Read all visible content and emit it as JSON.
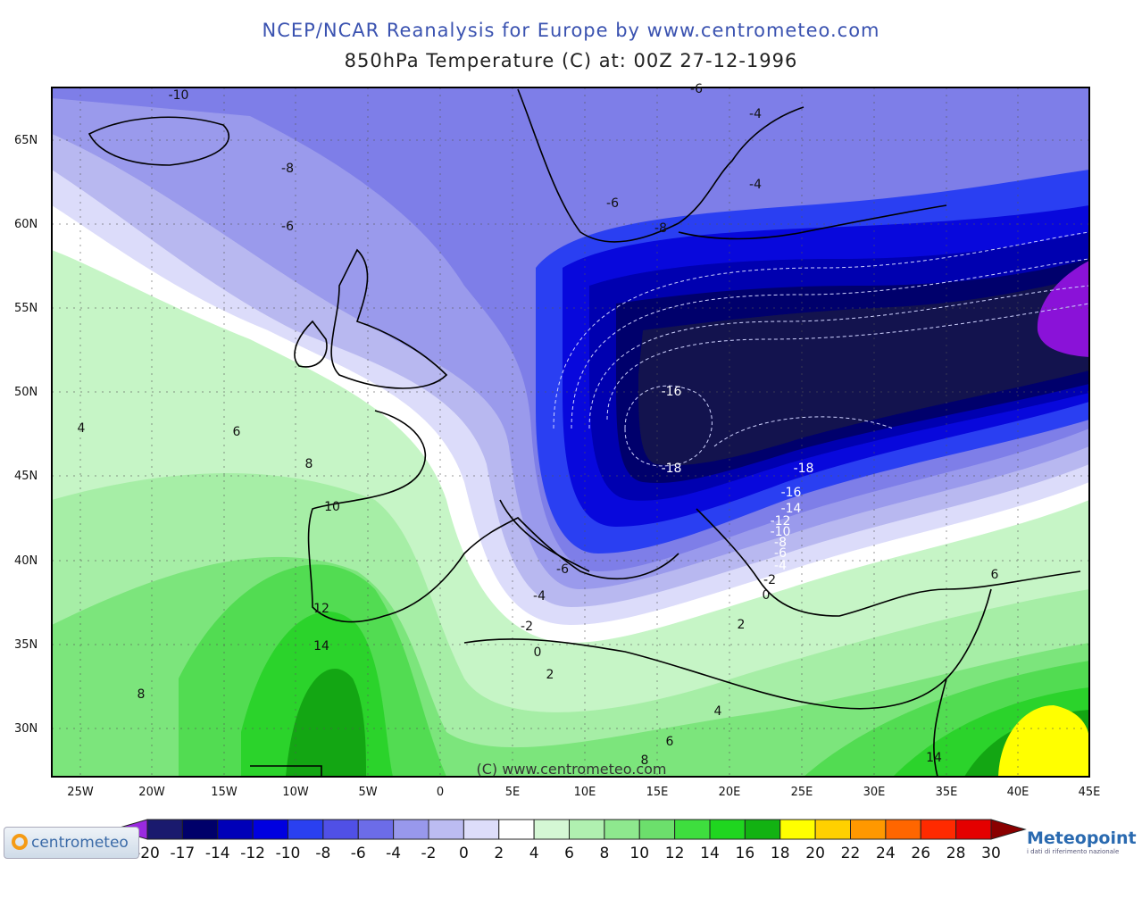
{
  "title": "NCEP/NCAR Reanalysis for Europe by www.centrometeo.com",
  "subtitle": "850hPa Temperature (C) at: 00Z 27-12-1996",
  "watermark": "(C) www.centrometeo.com",
  "lat_labels": [
    "65N",
    "60N",
    "55N",
    "50N",
    "45N",
    "40N",
    "35N",
    "30N"
  ],
  "lon_labels": [
    "25W",
    "20W",
    "15W",
    "10W",
    "5W",
    "0",
    "5E",
    "10E",
    "15E",
    "20E",
    "25E",
    "30E",
    "35E",
    "40E",
    "45E"
  ],
  "contour_labels": [
    "-10",
    "-6",
    "-4",
    "-8",
    "-4",
    "-6",
    "-8",
    "-6",
    "-16",
    "-18",
    "-18",
    "-16",
    "-14",
    "-12",
    "-10",
    "-8",
    "-6",
    "-4",
    "-2",
    "0",
    "4",
    "6",
    "8",
    "10",
    "-6",
    "-4",
    "-2",
    "0",
    "2",
    "2",
    "12",
    "14",
    "8",
    "4",
    "6",
    "8",
    "6",
    "14"
  ],
  "colorbar": {
    "labels": [
      "-20",
      "-17",
      "-14",
      "-12",
      "-10",
      "-8",
      "-6",
      "-4",
      "-2",
      "0",
      "2",
      "4",
      "6",
      "8",
      "10",
      "12",
      "14",
      "16",
      "18",
      "20",
      "22",
      "24",
      "26",
      "28",
      "30"
    ],
    "colors": [
      "#1a1a6e",
      "#00006a",
      "#0000b8",
      "#0000e0",
      "#2a40f0",
      "#5050e6",
      "#6c6ce8",
      "#9898ec",
      "#bcbcf2",
      "#ddddfa",
      "#ffffff",
      "#d4f7d4",
      "#b0f0b0",
      "#8ee88e",
      "#6cdf6c",
      "#3ede3e",
      "#1fd61f",
      "#12b212",
      "#ffff00",
      "#ffd000",
      "#ff9800",
      "#ff6600",
      "#ff2a00",
      "#e40000",
      "#c00000",
      "#8a0000"
    ]
  },
  "logos": {
    "left": "centrometeo",
    "right": "Meteopoint",
    "right_sub": "i dati di riferimento nazionale"
  }
}
